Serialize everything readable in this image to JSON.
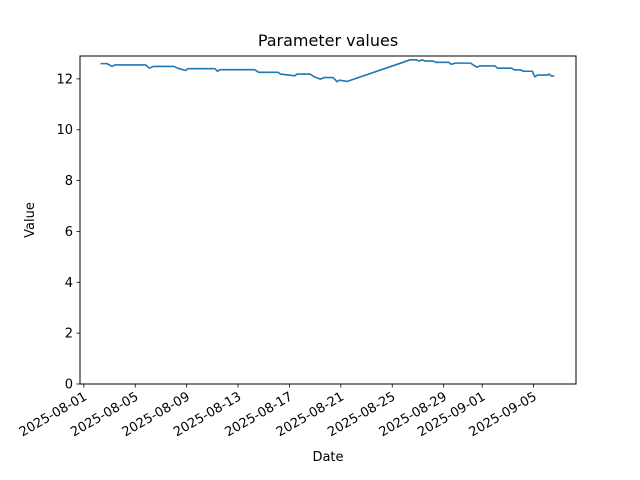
{
  "figure": {
    "background": "#ffffff"
  },
  "chart_data": {
    "type": "line",
    "title": "Parameter values",
    "xlabel": "Date",
    "ylabel": "Value",
    "grid": false,
    "legend": null,
    "line_color": "#1f77b4",
    "spine_color": "#000000",
    "x_unit": "days since 2025-08-01",
    "xlim": [
      -0.3,
      38.3
    ],
    "ylim": [
      0,
      12.9
    ],
    "yticks": [
      0,
      2,
      4,
      6,
      8,
      10,
      12
    ],
    "xticks": [
      {
        "pos": 0,
        "label": "2025-08-01"
      },
      {
        "pos": 4,
        "label": "2025-08-05"
      },
      {
        "pos": 8,
        "label": "2025-08-09"
      },
      {
        "pos": 12,
        "label": "2025-08-13"
      },
      {
        "pos": 16,
        "label": "2025-08-17"
      },
      {
        "pos": 20,
        "label": "2025-08-21"
      },
      {
        "pos": 24,
        "label": "2025-08-25"
      },
      {
        "pos": 28,
        "label": "2025-08-29"
      },
      {
        "pos": 31,
        "label": "2025-09-01"
      },
      {
        "pos": 35,
        "label": "2025-09-05"
      }
    ],
    "series": [
      {
        "name": "Parameter values",
        "x": [
          1.3,
          1.8,
          2.2,
          2.4,
          2.7,
          4.8,
          5.1,
          5.4,
          7.0,
          7.3,
          7.9,
          8.1,
          10.2,
          10.4,
          10.6,
          13.3,
          13.6,
          15.1,
          15.3,
          16.4,
          16.6,
          17.6,
          17.9,
          18.4,
          18.7,
          19.4,
          19.7,
          19.9,
          20.5,
          25.4,
          25.9,
          26.1,
          26.3,
          26.6,
          27.2,
          27.4,
          28.4,
          28.6,
          28.9,
          30.1,
          30.3,
          30.6,
          30.8,
          32.0,
          32.2,
          33.3,
          33.5,
          34.0,
          34.2,
          34.9,
          35.1,
          35.3,
          36.1,
          36.2,
          36.4,
          36.6
        ],
        "y": [
          12.6,
          12.6,
          12.49,
          12.55,
          12.55,
          12.55,
          12.42,
          12.49,
          12.49,
          12.42,
          12.33,
          12.4,
          12.4,
          12.3,
          12.36,
          12.36,
          12.26,
          12.26,
          12.19,
          12.12,
          12.19,
          12.19,
          12.09,
          11.99,
          12.05,
          12.05,
          11.89,
          11.95,
          11.9,
          12.75,
          12.75,
          12.7,
          12.75,
          12.7,
          12.7,
          12.65,
          12.65,
          12.57,
          12.62,
          12.62,
          12.55,
          12.46,
          12.51,
          12.51,
          12.42,
          12.42,
          12.35,
          12.35,
          12.3,
          12.3,
          12.08,
          12.15,
          12.15,
          12.19,
          12.11,
          12.11
        ]
      }
    ]
  }
}
